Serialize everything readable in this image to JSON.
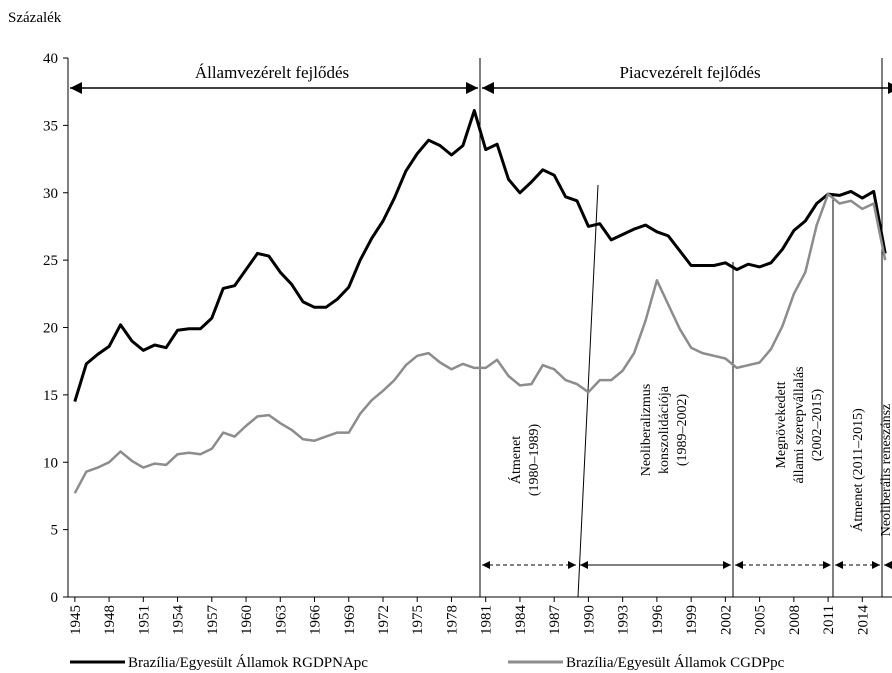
{
  "chart_data": {
    "type": "line",
    "y_label": "Százalék",
    "x": [
      1945,
      1946,
      1947,
      1948,
      1949,
      1950,
      1951,
      1952,
      1953,
      1954,
      1955,
      1956,
      1957,
      1958,
      1959,
      1960,
      1961,
      1962,
      1963,
      1964,
      1965,
      1966,
      1967,
      1968,
      1969,
      1970,
      1971,
      1972,
      1973,
      1974,
      1975,
      1976,
      1977,
      1978,
      1979,
      1980,
      1981,
      1982,
      1983,
      1984,
      1985,
      1986,
      1987,
      1988,
      1989,
      1990,
      1991,
      1992,
      1993,
      1994,
      1995,
      1996,
      1997,
      1998,
      1999,
      2000,
      2001,
      2002,
      2003,
      2004,
      2005,
      2006,
      2007,
      2008,
      2009,
      2010,
      2011,
      2012,
      2013,
      2014,
      2015,
      2016
    ],
    "series": [
      {
        "name": "Brazília/Egyesült Államok RGDPNApc",
        "color": "#000000",
        "values": [
          14.5,
          17.3,
          18.0,
          18.6,
          20.2,
          19.0,
          18.3,
          18.7,
          18.5,
          19.8,
          19.9,
          19.9,
          20.7,
          22.9,
          23.1,
          24.3,
          25.5,
          25.3,
          24.1,
          23.2,
          21.9,
          21.5,
          21.5,
          22.1,
          23.0,
          25.0,
          26.6,
          27.9,
          29.6,
          31.6,
          32.9,
          33.9,
          33.5,
          32.8,
          33.5,
          36.1,
          33.2,
          33.6,
          31.0,
          30.0,
          30.8,
          31.7,
          31.3,
          29.7,
          29.4,
          27.5,
          27.7,
          26.5,
          26.9,
          27.3,
          27.6,
          27.1,
          26.8,
          25.7,
          24.6,
          24.6,
          24.6,
          24.8,
          24.3,
          24.7,
          24.5,
          24.8,
          25.8,
          27.2,
          27.9,
          29.2,
          29.9,
          29.8,
          30.1,
          29.6,
          30.1,
          25.5
        ]
      },
      {
        "name": "Brazília/Egyesült Államok CGDPpc",
        "color": "#8c8c8c",
        "values": [
          7.7,
          9.3,
          9.6,
          10.0,
          10.8,
          10.1,
          9.6,
          9.9,
          9.8,
          10.6,
          10.7,
          10.6,
          11.0,
          12.2,
          11.9,
          12.7,
          13.4,
          13.5,
          12.9,
          12.4,
          11.7,
          11.6,
          11.9,
          12.2,
          12.2,
          13.6,
          14.6,
          15.3,
          16.1,
          17.2,
          17.9,
          18.1,
          17.4,
          16.9,
          17.3,
          17.0,
          17.0,
          17.6,
          16.4,
          15.7,
          15.8,
          17.2,
          16.9,
          16.1,
          15.8,
          15.2,
          16.1,
          16.1,
          16.8,
          18.1,
          20.5,
          23.5,
          21.7,
          19.9,
          18.5,
          18.1,
          17.9,
          17.7,
          17.0,
          17.2,
          17.4,
          18.4,
          20.1,
          22.5,
          24.1,
          27.6,
          29.9,
          29.2,
          29.4,
          28.8,
          29.2,
          25.0
        ]
      }
    ],
    "xlim": [
      1944.4,
      2016.6
    ],
    "xticks": [
      1945,
      1948,
      1951,
      1954,
      1957,
      1960,
      1963,
      1966,
      1969,
      1972,
      1975,
      1978,
      1981,
      1984,
      1987,
      1990,
      1993,
      1996,
      1999,
      2002,
      2005,
      2008,
      2011,
      2014
    ],
    "ylim": [
      0,
      40
    ],
    "yticks": [
      0,
      5,
      10,
      15,
      20,
      25,
      30,
      35,
      40
    ],
    "grid": false,
    "eras": [
      "Államvezérelt fejlődés",
      "Piacvezérelt fejlődés"
    ],
    "periods": [
      [
        "Átmenet",
        "(1980–1989)"
      ],
      [
        "Neoliberalizmus",
        "konszolidációja",
        "(1989–2002)"
      ],
      [
        "Megnövekedett",
        "állami szerepvállalás",
        "(2002–2015)"
      ],
      [
        "Átmenet (2011–2015)"
      ],
      [
        "Neoliberális  reneszánsz"
      ]
    ]
  }
}
